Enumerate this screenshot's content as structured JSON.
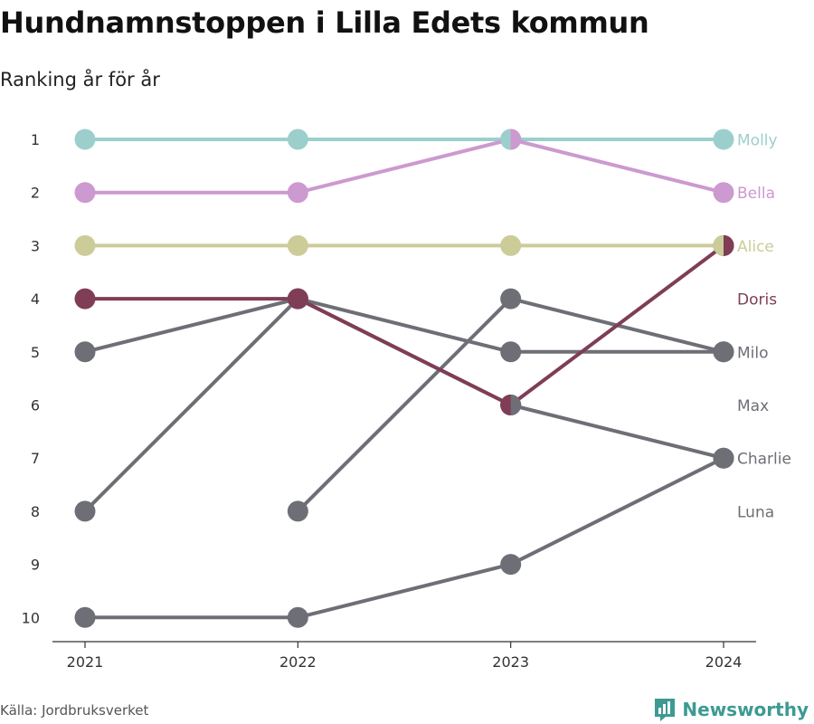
{
  "title": "Hundnamnstoppen i Lilla Edets kommun",
  "subtitle": "Ranking år för år",
  "source": "Källa: Jordbruksverket",
  "brand": "Newsworthy",
  "colors": {
    "Molly": "#9ccfcc",
    "Bella": "#cc99d0",
    "Alice": "#cccc99",
    "Doris": "#7f3d56",
    "other": "#6e6e76",
    "brand": "#3d9a92"
  },
  "chart_data": {
    "type": "line",
    "x": [
      2021,
      2022,
      2023,
      2024
    ],
    "y_ticks": [
      1,
      2,
      3,
      4,
      5,
      6,
      7,
      8,
      9,
      10
    ],
    "y_reversed": true,
    "ylim": [
      1,
      10
    ],
    "series": [
      {
        "name": "Molly",
        "values": [
          1,
          1,
          1,
          1
        ],
        "color_key": "Molly"
      },
      {
        "name": "Bella",
        "values": [
          2,
          2,
          1,
          2
        ],
        "color_key": "Bella"
      },
      {
        "name": "Alice",
        "values": [
          3,
          3,
          3,
          3
        ],
        "color_key": "Alice"
      },
      {
        "name": "Doris",
        "values": [
          4,
          4,
          6,
          3
        ],
        "color_key": "Doris"
      },
      {
        "name": "Milo",
        "values": [
          5,
          4,
          5,
          5
        ],
        "color_key": "other"
      },
      {
        "name": "Max",
        "values": [
          8,
          4,
          6,
          7
        ],
        "color_key": "other"
      },
      {
        "name": "Charlie",
        "values": [
          null,
          8,
          4,
          5
        ],
        "color_key": "other"
      },
      {
        "name": "Luna",
        "values": [
          10,
          10,
          9,
          7
        ],
        "color_key": "other"
      }
    ],
    "end_labels": [
      {
        "text": "Molly",
        "rank": 1,
        "color_key": "Molly"
      },
      {
        "text": "Bella",
        "rank": 2,
        "color_key": "Bella"
      },
      {
        "text": "Alice",
        "rank": 3,
        "color_key": "Alice"
      },
      {
        "text": "Doris",
        "rank": 4,
        "color_key": "Doris"
      },
      {
        "text": "Milo",
        "rank": 5,
        "color_key": "other"
      },
      {
        "text": "Max",
        "rank": 6,
        "color_key": "other"
      },
      {
        "text": "Charlie",
        "rank": 7,
        "color_key": "other"
      },
      {
        "text": "Luna",
        "rank": 8,
        "color_key": "other"
      }
    ],
    "split_markers": [
      {
        "x": 2023,
        "rank": 1,
        "left": "Molly",
        "right": "Bella"
      },
      {
        "x": 2023,
        "rank": 6,
        "left": "Doris",
        "right": "other"
      },
      {
        "x": 2024,
        "rank": 3,
        "left": "Alice",
        "right": "Doris"
      }
    ]
  }
}
